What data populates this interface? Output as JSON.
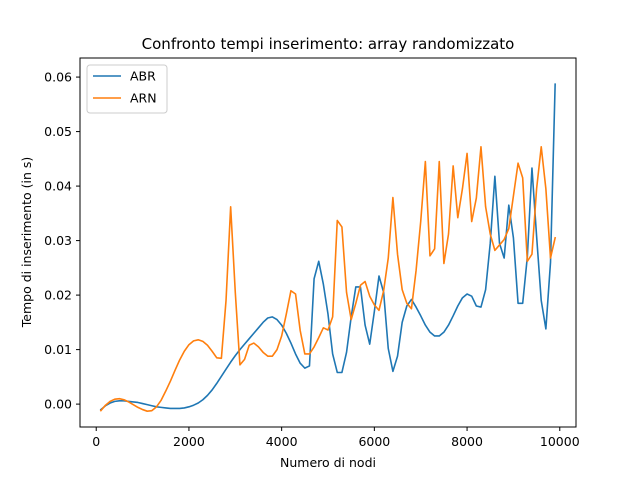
{
  "chart_data": {
    "type": "line",
    "title": "Confronto tempi inserimento: array randomizzato",
    "xlabel": "Numero di nodi",
    "ylabel": "Tempo di inserimento (in s)",
    "xlim": [
      -350,
      10350
    ],
    "ylim": [
      -0.0042,
      0.0635
    ],
    "xticks": [
      {
        "value": 0,
        "label": "0"
      },
      {
        "value": 2000,
        "label": "2000"
      },
      {
        "value": 4000,
        "label": "4000"
      },
      {
        "value": 6000,
        "label": "6000"
      },
      {
        "value": 8000,
        "label": "8000"
      },
      {
        "value": 10000,
        "label": "10000"
      }
    ],
    "yticks": [
      {
        "value": 0.0,
        "label": "0.00"
      },
      {
        "value": 0.01,
        "label": "0.01"
      },
      {
        "value": 0.02,
        "label": "0.02"
      },
      {
        "value": 0.03,
        "label": "0.03"
      },
      {
        "value": 0.04,
        "label": "0.04"
      },
      {
        "value": 0.05,
        "label": "0.05"
      },
      {
        "value": 0.06,
        "label": "0.06"
      }
    ],
    "grid": false,
    "legend_position": "top-left",
    "series": [
      {
        "name": "ABR",
        "color": "#1f77b4",
        "points": [
          [
            100,
            -0.001
          ],
          [
            200,
            -0.0003
          ],
          [
            300,
            0.0002
          ],
          [
            400,
            0.0005
          ],
          [
            500,
            0.0006
          ],
          [
            600,
            0.0006
          ],
          [
            700,
            0.0005
          ],
          [
            800,
            0.0004
          ],
          [
            900,
            0.0003
          ],
          [
            1000,
            0.0001
          ],
          [
            1100,
            -0.0001
          ],
          [
            1200,
            -0.0003
          ],
          [
            1300,
            -0.0005
          ],
          [
            1400,
            -0.0006
          ],
          [
            1500,
            -0.0007
          ],
          [
            1600,
            -0.0008
          ],
          [
            1700,
            -0.0008
          ],
          [
            1800,
            -0.0008
          ],
          [
            1900,
            -0.0007
          ],
          [
            2000,
            -0.0005
          ],
          [
            2100,
            -0.0002
          ],
          [
            2200,
            0.0002
          ],
          [
            2300,
            0.0008
          ],
          [
            2400,
            0.0016
          ],
          [
            2500,
            0.0026
          ],
          [
            2600,
            0.0038
          ],
          [
            2700,
            0.0051
          ],
          [
            2800,
            0.0064
          ],
          [
            2900,
            0.0077
          ],
          [
            3000,
            0.0089
          ],
          [
            3100,
            0.01
          ],
          [
            3200,
            0.011
          ],
          [
            3300,
            0.012
          ],
          [
            3400,
            0.013
          ],
          [
            3500,
            0.014
          ],
          [
            3600,
            0.015
          ],
          [
            3700,
            0.0158
          ],
          [
            3800,
            0.016
          ],
          [
            3900,
            0.0155
          ],
          [
            4000,
            0.0145
          ],
          [
            4100,
            0.013
          ],
          [
            4200,
            0.0112
          ],
          [
            4300,
            0.0092
          ],
          [
            4400,
            0.0075
          ],
          [
            4500,
            0.0066
          ],
          [
            4600,
            0.007
          ],
          [
            4700,
            0.023
          ],
          [
            4800,
            0.0262
          ],
          [
            4900,
            0.022
          ],
          [
            5000,
            0.0165
          ],
          [
            5100,
            0.0092
          ],
          [
            5200,
            0.0058
          ],
          [
            5300,
            0.0058
          ],
          [
            5400,
            0.0095
          ],
          [
            5500,
            0.016
          ],
          [
            5600,
            0.0215
          ],
          [
            5700,
            0.0215
          ],
          [
            5800,
            0.0145
          ],
          [
            5900,
            0.011
          ],
          [
            6000,
            0.017
          ],
          [
            6100,
            0.0235
          ],
          [
            6200,
            0.0205
          ],
          [
            6300,
            0.0102
          ],
          [
            6400,
            0.006
          ],
          [
            6500,
            0.0088
          ],
          [
            6600,
            0.015
          ],
          [
            6700,
            0.018
          ],
          [
            6800,
            0.0192
          ],
          [
            6900,
            0.0178
          ],
          [
            7000,
            0.0162
          ],
          [
            7100,
            0.0145
          ],
          [
            7200,
            0.0132
          ],
          [
            7300,
            0.0125
          ],
          [
            7400,
            0.0125
          ],
          [
            7500,
            0.0132
          ],
          [
            7600,
            0.0145
          ],
          [
            7700,
            0.0162
          ],
          [
            7800,
            0.018
          ],
          [
            7900,
            0.0195
          ],
          [
            8000,
            0.0202
          ],
          [
            8100,
            0.0198
          ],
          [
            8200,
            0.018
          ],
          [
            8300,
            0.0178
          ],
          [
            8400,
            0.021
          ],
          [
            8500,
            0.0295
          ],
          [
            8600,
            0.0418
          ],
          [
            8700,
            0.0295
          ],
          [
            8800,
            0.0268
          ],
          [
            8900,
            0.0365
          ],
          [
            9000,
            0.0305
          ],
          [
            9100,
            0.0185
          ],
          [
            9200,
            0.0185
          ],
          [
            9300,
            0.027
          ],
          [
            9400,
            0.0433
          ],
          [
            9500,
            0.0308
          ],
          [
            9600,
            0.019
          ],
          [
            9700,
            0.0138
          ],
          [
            9800,
            0.026
          ],
          [
            9900,
            0.0587
          ]
        ]
      },
      {
        "name": "ARN",
        "color": "#ff7f0e",
        "points": [
          [
            100,
            -0.0012
          ],
          [
            200,
            -0.0002
          ],
          [
            300,
            0.0005
          ],
          [
            400,
            0.0009
          ],
          [
            500,
            0.001
          ],
          [
            600,
            0.0008
          ],
          [
            700,
            0.0004
          ],
          [
            800,
            -0.0001
          ],
          [
            900,
            -0.0006
          ],
          [
            1000,
            -0.001
          ],
          [
            1100,
            -0.0013
          ],
          [
            1200,
            -0.0012
          ],
          [
            1300,
            -0.0005
          ],
          [
            1400,
            0.0007
          ],
          [
            1500,
            0.0024
          ],
          [
            1600,
            0.0042
          ],
          [
            1700,
            0.0062
          ],
          [
            1800,
            0.0081
          ],
          [
            1900,
            0.0097
          ],
          [
            2000,
            0.0109
          ],
          [
            2100,
            0.0116
          ],
          [
            2200,
            0.0118
          ],
          [
            2300,
            0.0115
          ],
          [
            2400,
            0.0108
          ],
          [
            2500,
            0.0097
          ],
          [
            2600,
            0.0085
          ],
          [
            2700,
            0.0084
          ],
          [
            2800,
            0.019
          ],
          [
            2900,
            0.0362
          ],
          [
            3000,
            0.0205
          ],
          [
            3100,
            0.0072
          ],
          [
            3200,
            0.0082
          ],
          [
            3300,
            0.0108
          ],
          [
            3400,
            0.0112
          ],
          [
            3500,
            0.0105
          ],
          [
            3600,
            0.0095
          ],
          [
            3700,
            0.0088
          ],
          [
            3800,
            0.0088
          ],
          [
            3900,
            0.01
          ],
          [
            4000,
            0.0125
          ],
          [
            4100,
            0.0165
          ],
          [
            4200,
            0.0208
          ],
          [
            4300,
            0.0202
          ],
          [
            4400,
            0.0135
          ],
          [
            4500,
            0.0092
          ],
          [
            4600,
            0.0092
          ],
          [
            4700,
            0.0105
          ],
          [
            4800,
            0.0122
          ],
          [
            4900,
            0.014
          ],
          [
            5000,
            0.0136
          ],
          [
            5100,
            0.016
          ],
          [
            5200,
            0.0337
          ],
          [
            5300,
            0.0325
          ],
          [
            5400,
            0.0205
          ],
          [
            5500,
            0.0155
          ],
          [
            5600,
            0.0185
          ],
          [
            5700,
            0.0218
          ],
          [
            5800,
            0.0225
          ],
          [
            5900,
            0.0198
          ],
          [
            6000,
            0.0182
          ],
          [
            6100,
            0.0172
          ],
          [
            6200,
            0.0208
          ],
          [
            6300,
            0.0268
          ],
          [
            6400,
            0.0379
          ],
          [
            6500,
            0.0275
          ],
          [
            6600,
            0.021
          ],
          [
            6700,
            0.0185
          ],
          [
            6800,
            0.0175
          ],
          [
            6900,
            0.0245
          ],
          [
            7000,
            0.0335
          ],
          [
            7100,
            0.0445
          ],
          [
            7200,
            0.0272
          ],
          [
            7300,
            0.0285
          ],
          [
            7400,
            0.0445
          ],
          [
            7500,
            0.0258
          ],
          [
            7600,
            0.0312
          ],
          [
            7700,
            0.0437
          ],
          [
            7800,
            0.0342
          ],
          [
            7900,
            0.0395
          ],
          [
            8000,
            0.046
          ],
          [
            8100,
            0.0335
          ],
          [
            8200,
            0.0378
          ],
          [
            8300,
            0.0472
          ],
          [
            8400,
            0.0362
          ],
          [
            8500,
            0.0312
          ],
          [
            8600,
            0.0282
          ],
          [
            8700,
            0.0292
          ],
          [
            8800,
            0.0302
          ],
          [
            8900,
            0.0322
          ],
          [
            9000,
            0.0382
          ],
          [
            9100,
            0.0442
          ],
          [
            9200,
            0.0415
          ],
          [
            9300,
            0.0262
          ],
          [
            9400,
            0.0275
          ],
          [
            9500,
            0.0395
          ],
          [
            9600,
            0.0472
          ],
          [
            9700,
            0.0395
          ],
          [
            9800,
            0.0268
          ],
          [
            9900,
            0.0305
          ]
        ]
      }
    ]
  }
}
